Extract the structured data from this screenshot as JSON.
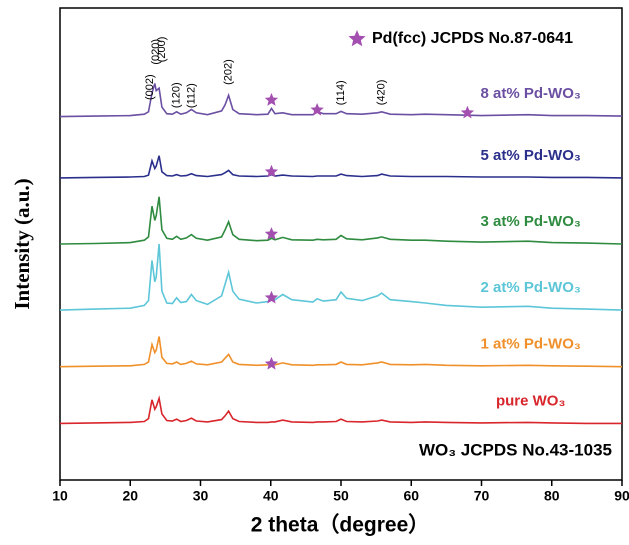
{
  "chart_data": {
    "type": "line",
    "xlabel": "2 theta（degree）",
    "ylabel": "Intensity (a.u.)",
    "xlim": [
      10,
      90
    ],
    "ylim": [
      0,
      100
    ],
    "xticks": [
      10,
      20,
      30,
      40,
      50,
      60,
      70,
      80,
      90
    ],
    "x": [
      10,
      15,
      20,
      22,
      22.6,
      23.1,
      23.5,
      23.7,
      24.1,
      24.5,
      25.2,
      26,
      26.6,
      27.2,
      28,
      28.7,
      29.4,
      31,
      33,
      33.5,
      34,
      34.6,
      35.5,
      38,
      39.6,
      40.1,
      40.6,
      41.7,
      43,
      46,
      46.6,
      47.5,
      49.3,
      50,
      50.8,
      53,
      55.2,
      55.8,
      57,
      60,
      62,
      65,
      70,
      76.6,
      80,
      85,
      90
    ],
    "series": [
      {
        "name": "8 at% Pd-WO₃",
        "color": "#6b4fa3",
        "values": [
          77,
          77.1,
          77.2,
          77.5,
          78,
          82,
          84,
          82.5,
          83,
          79,
          77.6,
          77.5,
          78,
          77.5,
          77.8,
          78.5,
          77.8,
          77.4,
          78.2,
          79.5,
          81.5,
          78.5,
          77.6,
          77.4,
          77.5,
          78.7,
          77.6,
          77.8,
          77.4,
          77.4,
          78,
          77.6,
          77.6,
          78.1,
          77.6,
          77.5,
          77.8,
          78,
          77.5,
          77.4,
          77.5,
          77.4,
          77.2,
          77.4,
          77.2,
          77.2,
          77.1
        ]
      },
      {
        "name": "5 at% Pd-WO₃",
        "color": "#2b2f8c",
        "values": [
          64,
          64.1,
          64.2,
          64.3,
          64.6,
          67.6,
          66,
          66.5,
          68.7,
          65.3,
          64.5,
          64.4,
          64.7,
          64.4,
          64.5,
          64.9,
          64.5,
          64.3,
          64.7,
          65.1,
          65.6,
          64.7,
          64.4,
          64.3,
          64.4,
          64.7,
          64.4,
          64.6,
          64.4,
          64.3,
          64.4,
          64.4,
          64.4,
          64.8,
          64.5,
          64.3,
          64.5,
          64.8,
          64.4,
          64.3,
          64.3,
          64.3,
          64.2,
          64.2,
          64.1,
          64.1,
          64
        ]
      },
      {
        "name": "3 at% Pd-WO₃",
        "color": "#2e8b3f",
        "values": [
          50,
          50.1,
          50.3,
          50.8,
          51.5,
          58,
          55,
          56,
          60,
          53,
          51.2,
          51,
          51.6,
          51,
          51.3,
          52,
          51.2,
          50.8,
          51.5,
          53,
          54.7,
          52,
          51,
          50.7,
          50.8,
          51.2,
          50.9,
          51.4,
          50.9,
          50.8,
          51,
          50.9,
          51,
          51.8,
          51.1,
          50.9,
          51.3,
          51.5,
          51,
          50.8,
          50.8,
          50.6,
          50.4,
          50.6,
          50.3,
          50.2,
          50
        ]
      },
      {
        "name": "2 at% Pd-WO₃",
        "color": "#5cc6d8",
        "values": [
          36,
          36.2,
          36.4,
          37,
          38,
          46.5,
          42,
          43,
          50,
          40,
          37.5,
          37.4,
          38.6,
          37.6,
          37.8,
          39.3,
          38,
          37.2,
          39,
          41.5,
          44,
          40,
          38.3,
          37.5,
          37.8,
          38.8,
          38.2,
          39.3,
          38.2,
          37.7,
          38.4,
          37.9,
          38.2,
          39.8,
          38.5,
          38,
          39,
          39.6,
          38.2,
          37.8,
          37.5,
          37,
          36.6,
          36.8,
          36.4,
          36.2,
          36
        ]
      },
      {
        "name": "1 at% Pd-WO₃",
        "color": "#f0902a",
        "values": [
          24,
          24.1,
          24.2,
          24.5,
          25,
          28.7,
          27,
          27.5,
          30.4,
          26,
          24.7,
          24.6,
          25,
          24.5,
          24.7,
          25.2,
          24.6,
          24.4,
          25,
          25.8,
          26.6,
          25,
          24.5,
          24.3,
          24.4,
          24.7,
          24.4,
          24.8,
          24.4,
          24.3,
          24.4,
          24.4,
          24.5,
          25,
          24.5,
          24.4,
          24.8,
          25,
          24.5,
          24.4,
          24.5,
          24.3,
          24.2,
          24.3,
          24.2,
          24.1,
          24
        ]
      },
      {
        "name": "pure WO₃",
        "color": "#d8262c",
        "values": [
          12,
          12.1,
          12.2,
          12.4,
          13,
          17,
          15,
          15.5,
          17.3,
          14,
          12.6,
          12.5,
          12.9,
          12.4,
          12.6,
          13.1,
          12.5,
          12.3,
          12.8,
          13.6,
          14.6,
          13,
          12.4,
          12.2,
          12.2,
          12.3,
          12.3,
          12.7,
          12.3,
          12.2,
          12.3,
          12.3,
          12.4,
          12.9,
          12.4,
          12.3,
          12.5,
          12.7,
          12.3,
          12.2,
          12.3,
          12.2,
          12.1,
          12.2,
          12.1,
          12,
          12
        ]
      }
    ],
    "hkl_labels": [
      {
        "text": "(002)",
        "x": 22.8,
        "y": 80.5
      },
      {
        "text": "(020)",
        "x": 23.7,
        "y": 88
      },
      {
        "text": "(200)",
        "x": 24.5,
        "y": 88.5
      },
      {
        "text": "(120)",
        "x": 26.6,
        "y": 78.8
      },
      {
        "text": "(112)",
        "x": 28.7,
        "y": 78.8
      },
      {
        "text": "(202)",
        "x": 34,
        "y": 83.7
      },
      {
        "text": "(114)",
        "x": 50,
        "y": 79.4
      },
      {
        "text": "(420)",
        "x": 55.8,
        "y": 79.4
      }
    ],
    "pd_markers": {
      "label": "Pd(fcc) JCPDS No.87-0641",
      "color": "#a24fb0",
      "points": [
        {
          "x": 40.1,
          "y": 80.5
        },
        {
          "x": 46.6,
          "y": 78.4
        },
        {
          "x": 68,
          "y": 77.8
        },
        {
          "x": 40.1,
          "y": 65.3
        },
        {
          "x": 40.1,
          "y": 52.1
        },
        {
          "x": 40.1,
          "y": 38.6
        },
        {
          "x": 40.1,
          "y": 24.6
        }
      ]
    },
    "reference_label": "WO₃ JCPDS No.43-1035"
  }
}
